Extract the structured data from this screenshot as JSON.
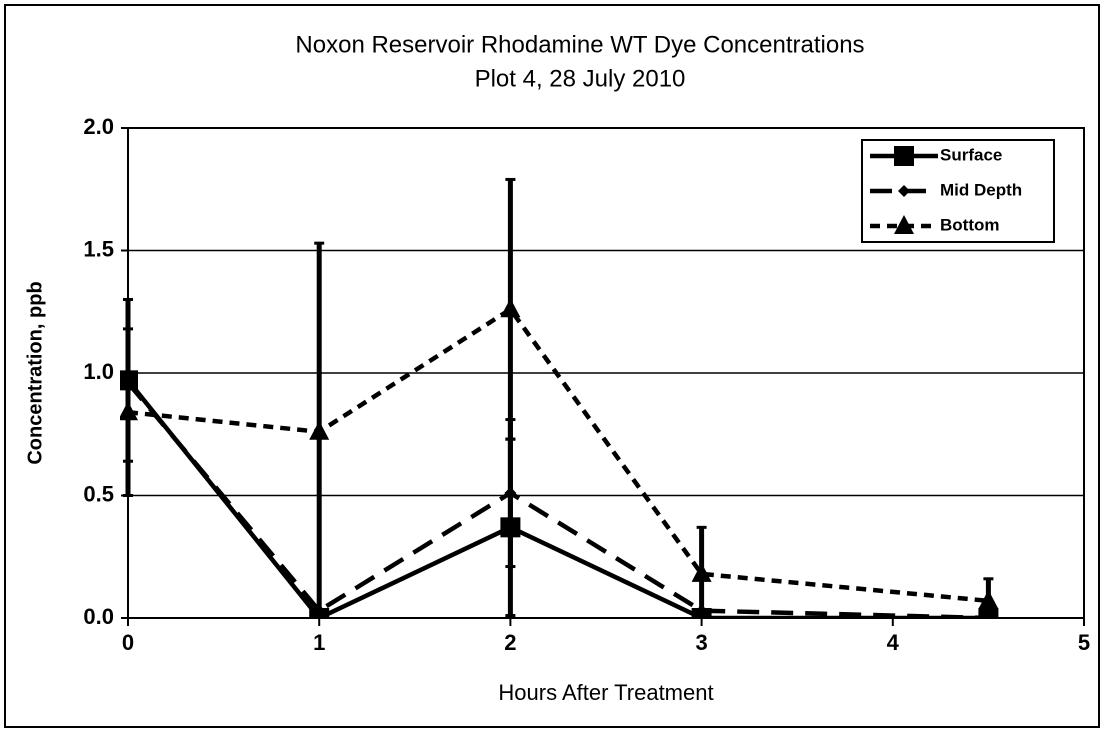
{
  "chart_data": {
    "type": "line",
    "title": "Noxon Reservoir Rhodamine WT Dye Concentrations",
    "subtitle": "Plot 4, 28 July 2010",
    "x_label": "Hours After Treatment",
    "y_label": "Concentration, ppb",
    "x": [
      0,
      1,
      2,
      3,
      4.5
    ],
    "series": [
      {
        "name": "Surface",
        "color": "#000000",
        "marker": "square",
        "dash": "solid",
        "values": [
          0.97,
          0,
          0.37,
          0,
          0
        ],
        "errors": [
          0.33,
          0,
          0.36,
          0,
          0
        ]
      },
      {
        "name": "Mid Depth",
        "color": "#000000",
        "marker": "diamond",
        "dash": "long",
        "values": [
          0.96,
          0.03,
          0.51,
          0.03,
          0
        ],
        "errors": [
          0,
          0,
          0.3,
          0,
          0
        ]
      },
      {
        "name": "Bottom",
        "color": "#000000",
        "marker": "triangle",
        "dash": "short",
        "values": [
          0.84,
          0.76,
          1.26,
          0.18,
          0.07
        ],
        "errors": [
          0.34,
          0.77,
          0.53,
          0.19,
          0.09
        ]
      }
    ],
    "xlim": [
      0,
      5
    ],
    "xticks": [
      0,
      1,
      2,
      3,
      4,
      5
    ],
    "ylim": [
      0,
      2
    ],
    "yticks": [
      {
        "value": 0,
        "label": "0.0"
      },
      {
        "value": 0.5,
        "label": "0.5"
      },
      {
        "value": 1,
        "label": "1.0"
      },
      {
        "value": 1.5,
        "label": "1.5"
      },
      {
        "value": 2,
        "label": "2.0"
      }
    ],
    "grid": true,
    "legend": "upper right"
  }
}
